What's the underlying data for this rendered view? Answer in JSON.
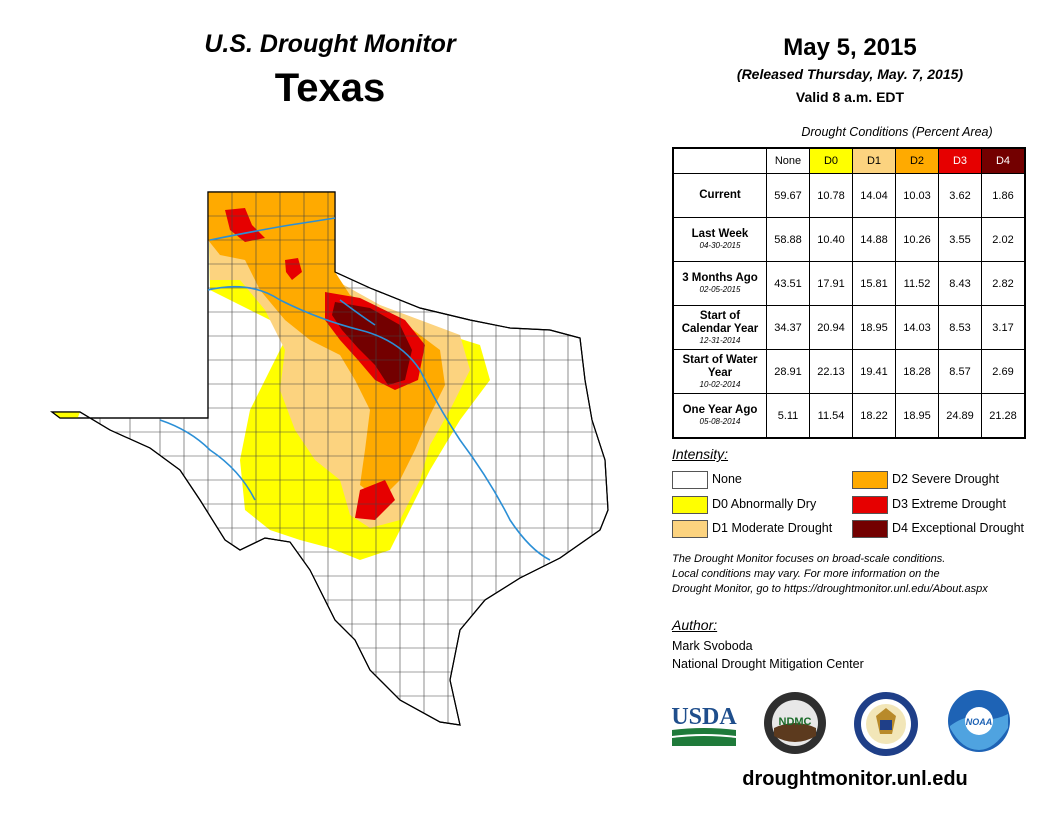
{
  "header": {
    "subtitle": "U.S. Drought Monitor",
    "state": "Texas",
    "date": "May 5, 2015",
    "released": "(Released Thursday, May. 7, 2015)",
    "valid": "Valid 8 a.m. EDT"
  },
  "conditions_table": {
    "caption": "Drought Conditions (Percent Area)",
    "columns": [
      "None",
      "D0",
      "D1",
      "D2",
      "D3",
      "D4"
    ],
    "column_colors": [
      "#ffffff",
      "#ffff00",
      "#fcd37f",
      "#ffaa00",
      "#e60000",
      "#730000"
    ],
    "rows": [
      {
        "label": "Current",
        "date": "",
        "values": [
          "59.67",
          "10.78",
          "14.04",
          "10.03",
          "3.62",
          "1.86"
        ]
      },
      {
        "label": "Last Week",
        "date": "04-30-2015",
        "values": [
          "58.88",
          "10.40",
          "14.88",
          "10.26",
          "3.55",
          "2.02"
        ]
      },
      {
        "label": "3 Months Ago",
        "date": "02-05-2015",
        "values": [
          "43.51",
          "17.91",
          "15.81",
          "11.52",
          "8.43",
          "2.82"
        ]
      },
      {
        "label": "Start of Calendar Year",
        "date": "12-31-2014",
        "values": [
          "34.37",
          "20.94",
          "18.95",
          "14.03",
          "8.53",
          "3.17"
        ]
      },
      {
        "label": "Start of Water Year",
        "date": "10-02-2014",
        "values": [
          "28.91",
          "22.13",
          "19.41",
          "18.28",
          "8.57",
          "2.69"
        ]
      },
      {
        "label": "One Year Ago",
        "date": "05-08-2014",
        "values": [
          "5.11",
          "11.54",
          "18.22",
          "18.95",
          "24.89",
          "21.28"
        ]
      }
    ]
  },
  "legend": {
    "title": "Intensity:",
    "items": [
      {
        "label": "None",
        "color": "#ffffff"
      },
      {
        "label": "D0 Abnormally Dry",
        "color": "#ffff00"
      },
      {
        "label": "D1 Moderate Drought",
        "color": "#fcd37f"
      },
      {
        "label": "D2 Severe Drought",
        "color": "#ffaa00"
      },
      {
        "label": "D3 Extreme Drought",
        "color": "#e60000"
      },
      {
        "label": "D4 Exceptional Drought",
        "color": "#730000"
      }
    ]
  },
  "note": {
    "line1": "The Drought Monitor focuses on broad-scale conditions.",
    "line2": "Local conditions may vary. For more information on the",
    "line3": "Drought Monitor, go to https://droughtmonitor.unl.edu/About.aspx"
  },
  "author": {
    "label": "Author:",
    "name": "Mark Svoboda",
    "org": "National Drought Mitigation Center"
  },
  "logos": {
    "usda": "USDA",
    "ndmc": "NDMC",
    "noaa": "NOAA"
  },
  "website": "droughtmonitor.unl.edu"
}
